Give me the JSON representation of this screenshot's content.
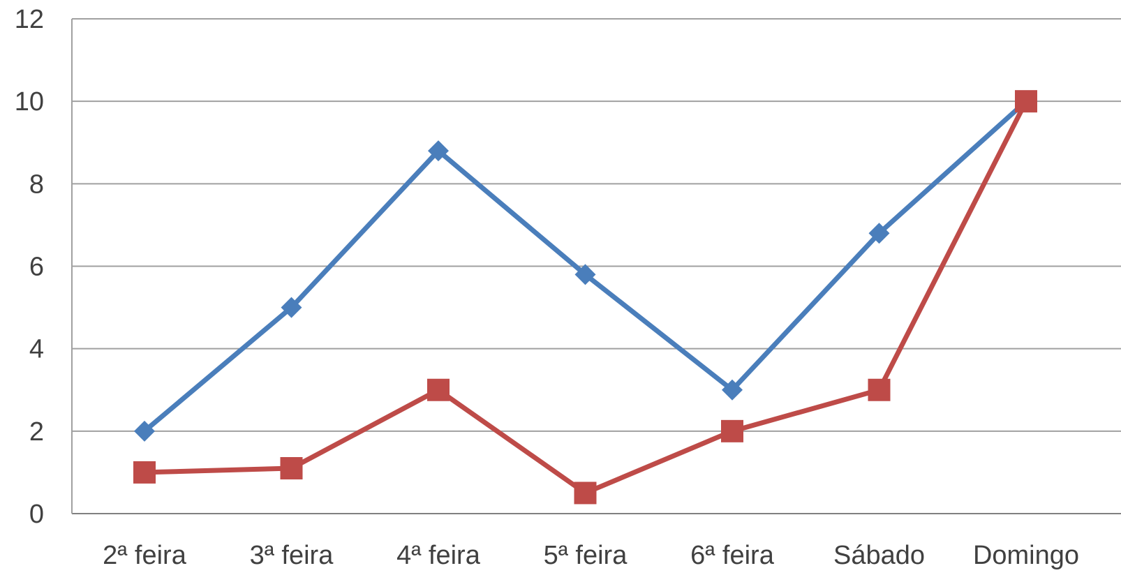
{
  "chart_data": {
    "type": "line",
    "title": "",
    "xlabel": "",
    "ylabel": "",
    "categories": [
      "2ª feira",
      "3ª feira",
      "4ª feira",
      "5ª feira",
      "6ª feira",
      "Sábado",
      "Domingo"
    ],
    "ylim": [
      0,
      12
    ],
    "yticks": [
      "0",
      "2",
      "4",
      "6",
      "8",
      "10",
      "12"
    ],
    "grid": true,
    "legend": "none",
    "series": [
      {
        "values": [
          2,
          5,
          8.8,
          5.8,
          3,
          6.8,
          10
        ],
        "color": "#4a7ebb",
        "marker": "diamond"
      },
      {
        "values": [
          1,
          1.1,
          3,
          0.5,
          2,
          3,
          10
        ],
        "color": "#be4b48",
        "marker": "square"
      }
    ]
  }
}
